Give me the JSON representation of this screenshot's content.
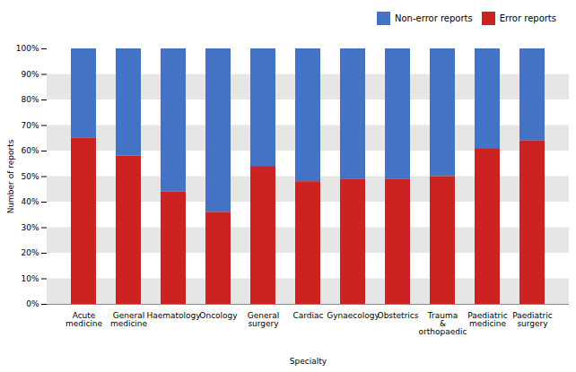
{
  "chart_data": {
    "type": "bar",
    "stacked": true,
    "categories": [
      "Acute\nmedicine",
      "General\nmedicine",
      "Haematology",
      "Oncology",
      "General\nsurgery",
      "Cardiac",
      "Gynaecology",
      "Obstetrics",
      "Trauma\n&\northopaedic",
      "Paediatric\nmedicine",
      "Paediatric\nsurgery"
    ],
    "series": [
      {
        "name": "Non-error reports",
        "color": "#4472c4",
        "values": [
          35,
          42,
          56,
          64,
          46,
          52,
          51,
          51,
          50,
          39,
          36
        ]
      },
      {
        "name": "Error reports",
        "color": "#cc2222",
        "values": [
          65,
          58,
          44,
          36,
          54,
          48,
          49,
          49,
          50,
          61,
          64
        ]
      }
    ],
    "x_label": "Specialty",
    "y_label": "Number of reports",
    "ylim": [
      0,
      100
    ],
    "yticks": [
      {
        "value": 0,
        "label": "0%"
      },
      {
        "value": 10,
        "label": "10%"
      },
      {
        "value": 20,
        "label": "20%"
      },
      {
        "value": 30,
        "label": "30%"
      },
      {
        "value": 40,
        "label": "40%"
      },
      {
        "value": 50,
        "label": "50%"
      },
      {
        "value": 60,
        "label": "60%"
      },
      {
        "value": 70,
        "label": "70%"
      },
      {
        "value": 80,
        "label": "80%"
      },
      {
        "value": 90,
        "label": "90%"
      },
      {
        "value": 100,
        "label": "100%"
      }
    ],
    "grid": true,
    "legend": "upper right"
  }
}
